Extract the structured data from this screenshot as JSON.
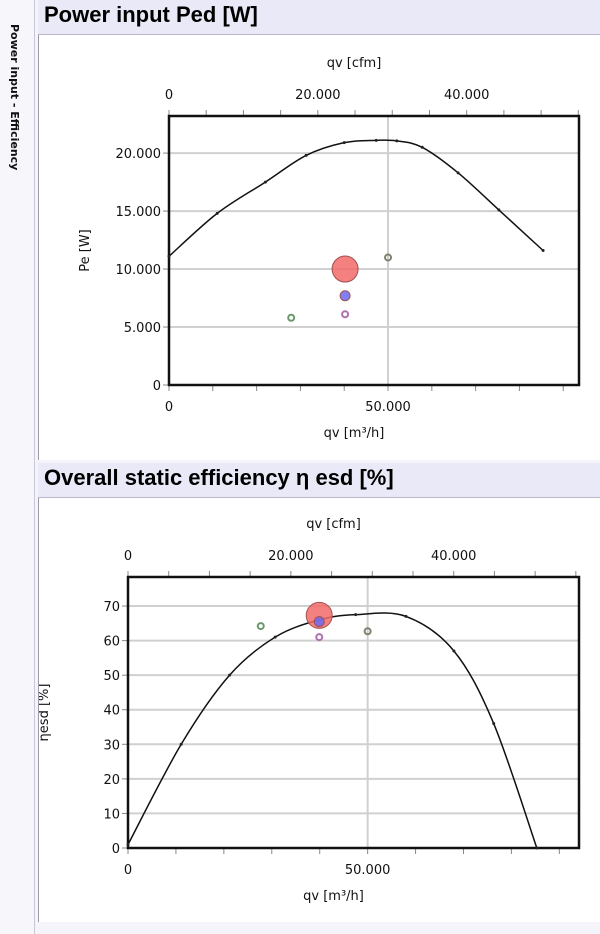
{
  "sidetab": {
    "label": "Power input - Efficiency"
  },
  "chart_data": [
    {
      "type": "line",
      "title": "Power input  Ped [W]",
      "xlabel": "qv [m³/h]",
      "x2label": "qv [cfm]",
      "ylabel": "Pe [W]",
      "xlim": [
        0,
        93600
      ],
      "ylim": [
        0,
        23200
      ],
      "xticks": [
        0,
        50000
      ],
      "xtick_labels": [
        "0",
        "50.000"
      ],
      "x2ticks_cfm": [
        0,
        20000,
        40000
      ],
      "x2tick_labels": [
        "0",
        "20.000",
        "40.000"
      ],
      "yticks": [
        0,
        5000,
        10000,
        15000,
        20000
      ],
      "ytick_labels": [
        "0",
        "5.000",
        "10.000",
        "15.000",
        "20.000"
      ],
      "grid": true,
      "curve": {
        "x": [
          0,
          11000,
          22000,
          31300,
          40000,
          47300,
          52000,
          57800,
          66000,
          75300,
          85400
        ],
        "y": [
          11100,
          14800,
          17500,
          19800,
          20900,
          21100,
          21050,
          20500,
          18300,
          15100,
          11600
        ]
      },
      "points": [
        {
          "x": 40200,
          "y": 10000,
          "color": "#f26a6a",
          "size": "large"
        },
        {
          "x": 40200,
          "y": 7700,
          "color": "#6a6af2",
          "size": "medium"
        },
        {
          "x": 40200,
          "y": 6100,
          "color": "#b070b0",
          "size": "small"
        },
        {
          "x": 27900,
          "y": 5800,
          "color": "#6a9a6a",
          "size": "small"
        },
        {
          "x": 50000,
          "y": 11000,
          "color": "#808070",
          "size": "small"
        }
      ]
    },
    {
      "type": "line",
      "title": "Overall static efficiency η esd  [%]",
      "xlabel": "qv [m³/h]",
      "x2label": "qv [cfm]",
      "ylabel": "ηesd [%]",
      "xlim": [
        0,
        94100
      ],
      "ylim": [
        0,
        78.4
      ],
      "xticks": [
        0,
        50000
      ],
      "xtick_labels": [
        "0",
        "50.000"
      ],
      "x2ticks_cfm": [
        0,
        20000,
        40000
      ],
      "x2tick_labels": [
        "0",
        "20.000",
        "40.000"
      ],
      "yticks": [
        0,
        10,
        20,
        30,
        40,
        50,
        60,
        70
      ],
      "ytick_labels": [
        "0",
        "10",
        "20",
        "30",
        "40",
        "50",
        "60",
        "70"
      ],
      "grid": true,
      "curve": {
        "x": [
          0,
          11100,
          21200,
          30700,
          39900,
          47500,
          58000,
          68000,
          76300,
          85300
        ],
        "y": [
          1,
          30,
          50,
          61,
          66,
          67.5,
          67,
          57,
          36,
          0
        ]
      },
      "points": [
        {
          "x": 39900,
          "y": 67.3,
          "color": "#f26a6a",
          "size": "large"
        },
        {
          "x": 39900,
          "y": 65.5,
          "color": "#6a6af2",
          "size": "medium"
        },
        {
          "x": 39900,
          "y": 61,
          "color": "#b070b0",
          "size": "small"
        },
        {
          "x": 27700,
          "y": 64.2,
          "color": "#6a9a6a",
          "size": "small"
        },
        {
          "x": 50000,
          "y": 62.7,
          "color": "#808070",
          "size": "small"
        }
      ]
    }
  ]
}
